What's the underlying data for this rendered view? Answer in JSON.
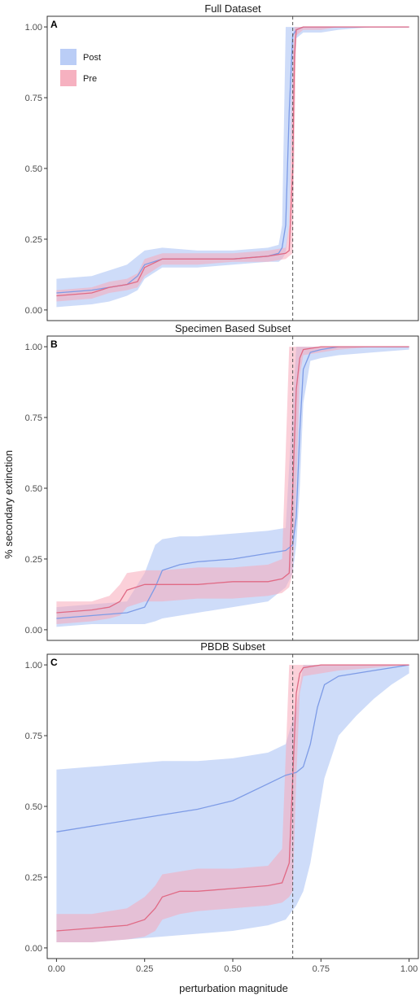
{
  "ylabel": "% secondary extinction",
  "xlabel": "perturbation magnitude",
  "legend": [
    {
      "name": "Post",
      "color": "#aec4f5"
    },
    {
      "name": "Pre",
      "color": "#f5a3b5"
    }
  ],
  "colors": {
    "post_band": "#aec4f5",
    "post_line": "#7d9be6",
    "pre_band": "#f7a9ba",
    "pre_line": "#e06a85",
    "vline": "#555555"
  },
  "x_ticks": [
    "0.00",
    "0.25",
    "0.50",
    "0.75",
    "1.00"
  ],
  "y_ticks": [
    "0.00",
    "0.25",
    "0.50",
    "0.75",
    "1.00"
  ],
  "chart_data": [
    {
      "type": "area",
      "panel": "A",
      "title": "Full Dataset",
      "xlim": [
        0,
        1
      ],
      "ylim": [
        0,
        1
      ],
      "vline": 0.67,
      "grid": false,
      "legend_position": "top-left",
      "series": [
        {
          "name": "Post",
          "x": [
            0.0,
            0.1,
            0.15,
            0.2,
            0.23,
            0.25,
            0.3,
            0.4,
            0.5,
            0.6,
            0.63,
            0.64,
            0.65,
            0.66,
            0.67,
            0.68,
            0.7,
            0.75,
            0.8,
            0.9,
            1.0
          ],
          "y": [
            0.06,
            0.07,
            0.08,
            0.09,
            0.12,
            0.16,
            0.18,
            0.18,
            0.18,
            0.19,
            0.2,
            0.22,
            0.3,
            0.7,
            0.97,
            0.99,
            1.0,
            1.0,
            1.0,
            1.0,
            1.0
          ],
          "lower": [
            0.01,
            0.02,
            0.03,
            0.05,
            0.07,
            0.11,
            0.15,
            0.15,
            0.16,
            0.17,
            0.17,
            0.18,
            0.2,
            0.3,
            0.7,
            0.96,
            0.98,
            0.98,
            0.99,
            1.0,
            1.0
          ],
          "upper": [
            0.11,
            0.12,
            0.14,
            0.16,
            0.19,
            0.21,
            0.22,
            0.21,
            0.21,
            0.22,
            0.23,
            0.3,
            1.0,
            1.0,
            1.0,
            1.0,
            1.0,
            1.0,
            1.0,
            1.0,
            1.0
          ]
        },
        {
          "name": "Pre",
          "x": [
            0.0,
            0.1,
            0.15,
            0.2,
            0.23,
            0.25,
            0.3,
            0.4,
            0.5,
            0.6,
            0.65,
            0.66,
            0.67,
            0.675,
            0.68,
            0.7,
            0.75,
            0.8,
            0.9,
            1.0
          ],
          "y": [
            0.05,
            0.06,
            0.08,
            0.09,
            0.1,
            0.15,
            0.18,
            0.18,
            0.18,
            0.19,
            0.2,
            0.21,
            0.5,
            0.9,
            0.99,
            1.0,
            1.0,
            1.0,
            1.0,
            1.0
          ],
          "lower": [
            0.03,
            0.04,
            0.06,
            0.07,
            0.08,
            0.12,
            0.16,
            0.16,
            0.17,
            0.17,
            0.18,
            0.19,
            0.2,
            0.6,
            0.97,
            0.99,
            0.99,
            1.0,
            1.0,
            1.0
          ],
          "upper": [
            0.07,
            0.08,
            0.1,
            0.11,
            0.13,
            0.18,
            0.2,
            0.2,
            0.2,
            0.21,
            0.22,
            0.3,
            0.9,
            1.0,
            1.0,
            1.0,
            1.0,
            1.0,
            1.0,
            1.0
          ]
        }
      ]
    },
    {
      "type": "area",
      "panel": "B",
      "title": "Specimen Based Subset",
      "xlim": [
        0,
        1
      ],
      "ylim": [
        0,
        1
      ],
      "vline": 0.67,
      "grid": false,
      "series": [
        {
          "name": "Post",
          "x": [
            0.0,
            0.1,
            0.2,
            0.25,
            0.28,
            0.3,
            0.35,
            0.4,
            0.5,
            0.6,
            0.65,
            0.67,
            0.68,
            0.69,
            0.7,
            0.72,
            0.75,
            0.8,
            0.9,
            1.0
          ],
          "y": [
            0.04,
            0.05,
            0.06,
            0.08,
            0.15,
            0.21,
            0.23,
            0.24,
            0.25,
            0.27,
            0.28,
            0.3,
            0.4,
            0.7,
            0.92,
            0.98,
            0.99,
            1.0,
            1.0,
            1.0
          ],
          "lower": [
            0.01,
            0.02,
            0.02,
            0.02,
            0.03,
            0.04,
            0.05,
            0.06,
            0.08,
            0.1,
            0.15,
            0.2,
            0.3,
            0.5,
            0.8,
            0.95,
            0.96,
            0.97,
            0.98,
            0.99
          ],
          "upper": [
            0.08,
            0.09,
            0.1,
            0.2,
            0.3,
            0.32,
            0.33,
            0.33,
            0.34,
            0.35,
            0.36,
            0.8,
            1.0,
            1.0,
            1.0,
            1.0,
            1.0,
            1.0,
            1.0,
            1.0
          ]
        },
        {
          "name": "Pre",
          "x": [
            0.0,
            0.1,
            0.15,
            0.18,
            0.2,
            0.25,
            0.3,
            0.4,
            0.5,
            0.6,
            0.64,
            0.66,
            0.67,
            0.68,
            0.69,
            0.7,
            0.75,
            0.8,
            0.9,
            1.0
          ],
          "y": [
            0.06,
            0.07,
            0.08,
            0.1,
            0.14,
            0.16,
            0.16,
            0.16,
            0.17,
            0.17,
            0.18,
            0.2,
            0.5,
            0.85,
            0.96,
            0.99,
            1.0,
            1.0,
            1.0,
            1.0
          ],
          "lower": [
            0.02,
            0.03,
            0.04,
            0.05,
            0.08,
            0.1,
            0.1,
            0.11,
            0.11,
            0.12,
            0.13,
            0.15,
            0.2,
            0.5,
            0.9,
            0.97,
            0.98,
            0.99,
            1.0,
            1.0
          ],
          "upper": [
            0.1,
            0.1,
            0.12,
            0.16,
            0.2,
            0.21,
            0.21,
            0.22,
            0.22,
            0.23,
            0.25,
            1.0,
            1.0,
            1.0,
            1.0,
            1.0,
            1.0,
            1.0,
            1.0,
            1.0
          ]
        }
      ]
    },
    {
      "type": "area",
      "panel": "C",
      "title": "PBDB Subset",
      "xlim": [
        0,
        1
      ],
      "ylim": [
        0,
        1
      ],
      "vline": 0.67,
      "grid": false,
      "series": [
        {
          "name": "Post",
          "x": [
            0.0,
            0.1,
            0.2,
            0.3,
            0.4,
            0.5,
            0.6,
            0.65,
            0.68,
            0.7,
            0.72,
            0.74,
            0.76,
            0.8,
            0.85,
            0.9,
            0.95,
            1.0
          ],
          "y": [
            0.41,
            0.43,
            0.45,
            0.47,
            0.49,
            0.52,
            0.58,
            0.61,
            0.62,
            0.64,
            0.72,
            0.85,
            0.93,
            0.96,
            0.97,
            0.98,
            0.99,
            1.0
          ],
          "lower": [
            0.02,
            0.02,
            0.03,
            0.04,
            0.05,
            0.06,
            0.08,
            0.1,
            0.15,
            0.2,
            0.3,
            0.45,
            0.6,
            0.75,
            0.82,
            0.88,
            0.93,
            0.97
          ],
          "upper": [
            0.63,
            0.64,
            0.65,
            0.66,
            0.66,
            0.67,
            0.69,
            0.72,
            0.85,
            1.0,
            1.0,
            1.0,
            1.0,
            1.0,
            1.0,
            1.0,
            1.0,
            1.0
          ]
        },
        {
          "name": "Pre",
          "x": [
            0.0,
            0.1,
            0.2,
            0.25,
            0.28,
            0.3,
            0.35,
            0.4,
            0.5,
            0.6,
            0.64,
            0.66,
            0.67,
            0.68,
            0.69,
            0.7,
            0.75,
            0.8,
            0.9,
            1.0
          ],
          "y": [
            0.06,
            0.07,
            0.08,
            0.1,
            0.14,
            0.18,
            0.2,
            0.2,
            0.21,
            0.22,
            0.23,
            0.3,
            0.6,
            0.9,
            0.97,
            0.99,
            1.0,
            1.0,
            1.0,
            1.0
          ],
          "lower": [
            0.02,
            0.02,
            0.03,
            0.04,
            0.06,
            0.1,
            0.12,
            0.13,
            0.14,
            0.15,
            0.16,
            0.18,
            0.2,
            0.6,
            0.9,
            0.96,
            0.97,
            0.98,
            0.99,
            1.0
          ],
          "upper": [
            0.12,
            0.12,
            0.14,
            0.18,
            0.22,
            0.26,
            0.27,
            0.28,
            0.28,
            0.29,
            0.35,
            1.0,
            1.0,
            1.0,
            1.0,
            1.0,
            1.0,
            1.0,
            1.0,
            1.0
          ]
        }
      ]
    }
  ]
}
